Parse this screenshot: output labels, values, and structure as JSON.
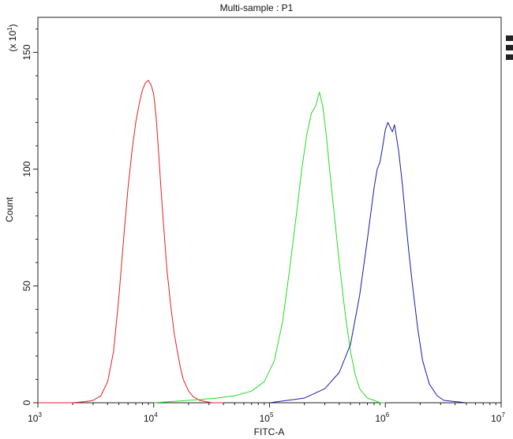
{
  "chart_data": {
    "type": "line",
    "title": "Multi-sample : P1",
    "xlabel": "FITC-A",
    "ylabel": "Count",
    "y_multiplier_label": {
      "prefix": "(x 10",
      "exponent": "1",
      "suffix": ")"
    },
    "xscale": "log",
    "xlim": [
      1000,
      10000000
    ],
    "ylim": [
      0,
      165
    ],
    "x_ticks": [
      {
        "base": "10",
        "exp": "3",
        "value": 1000
      },
      {
        "base": "10",
        "exp": "4",
        "value": 10000
      },
      {
        "base": "10",
        "exp": "5",
        "value": 100000
      },
      {
        "base": "10",
        "exp": "6",
        "value": 1000000
      },
      {
        "base": "10",
        "exp": "7",
        "value": 10000000
      }
    ],
    "y_ticks": [
      "0",
      "50",
      "100",
      "150"
    ],
    "y_tick_values": [
      0,
      50,
      100,
      150
    ],
    "grid": false,
    "series": [
      {
        "color": "#e02020",
        "x": [
          1000,
          2000,
          2600,
          3000,
          3500,
          4000,
          4500,
          5000,
          5500,
          6000,
          6500,
          7000,
          7500,
          8000,
          8500,
          9000,
          9500,
          10000,
          10500,
          11000,
          11500,
          12000,
          13000,
          14000,
          15000,
          16000,
          17000,
          18000,
          20000,
          22000,
          25000,
          28000,
          32000,
          40000
        ],
        "y": [
          0,
          0,
          0.5,
          1,
          3,
          9,
          22,
          45,
          70,
          92,
          108,
          120,
          128,
          134,
          137,
          138,
          136,
          132,
          122,
          108,
          93,
          80,
          57,
          42,
          30,
          22,
          15,
          10,
          5,
          2.5,
          1,
          0.5,
          0,
          0
        ]
      },
      {
        "color": "#22dd22",
        "x": [
          10000,
          20000,
          35000,
          50000,
          70000,
          90000,
          110000,
          130000,
          150000,
          170000,
          190000,
          210000,
          230000,
          250000,
          270000,
          290000,
          310000,
          330000,
          360000,
          400000,
          450000,
          500000,
          550000,
          600000,
          700000,
          800000,
          900000,
          1000000
        ],
        "y": [
          0,
          1,
          2,
          3,
          5,
          9,
          18,
          35,
          58,
          80,
          100,
          115,
          124,
          127,
          133,
          126,
          114,
          100,
          82,
          60,
          38,
          22,
          12,
          6,
          2,
          1,
          0,
          0
        ]
      },
      {
        "color": "#1a1aa8",
        "x": [
          100000,
          200000,
          300000,
          400000,
          500000,
          600000,
          700000,
          800000,
          850000,
          900000,
          950000,
          1000000,
          1050000,
          1100000,
          1150000,
          1200000,
          1300000,
          1400000,
          1500000,
          1600000,
          1700000,
          1900000,
          2100000,
          2400000,
          2800000,
          3200000,
          4000000,
          5000000
        ],
        "y": [
          0,
          2,
          6,
          13,
          25,
          46,
          70,
          92,
          100,
          103,
          110,
          117,
          120,
          118,
          116,
          119,
          108,
          94,
          78,
          64,
          52,
          32,
          18,
          8,
          3,
          1,
          0.5,
          0
        ]
      }
    ]
  }
}
